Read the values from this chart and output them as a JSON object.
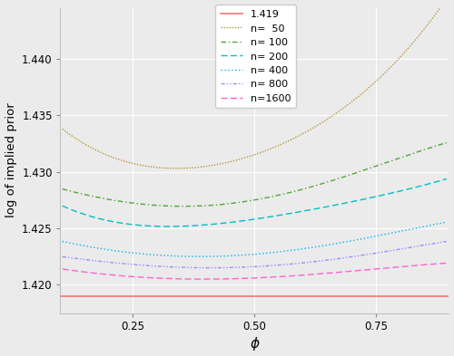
{
  "title": "",
  "xlabel": "ϕ",
  "ylabel": "log of implied prior",
  "xlim": [
    0.1,
    0.9
  ],
  "ylim": [
    1.4175,
    1.4445
  ],
  "xticks": [
    0.25,
    0.5,
    0.75
  ],
  "yticks": [
    1.42,
    1.425,
    1.43,
    1.435,
    1.44
  ],
  "background_color": "#EBEBEB",
  "grid_color": "#FFFFFF",
  "hline_value": 1.419,
  "hline_color": "#F8766D",
  "n_values": [
    50,
    100,
    200,
    400,
    800,
    1600
  ],
  "line_colors": [
    "#B5943A",
    "#52A53A",
    "#00BFC4",
    "#00B0F6",
    "#9590FF",
    "#FF61CC"
  ],
  "legend_labels": [
    "1.419",
    "n=  50",
    "n= 100",
    "n= 200",
    "n= 400",
    "n= 800",
    "n=1600"
  ],
  "phi_min": 0.105,
  "phi_max": 0.895,
  "n_points": 300,
  "A": 0.55,
  "B": 0.75,
  "C": 0.3,
  "base": 1.419
}
